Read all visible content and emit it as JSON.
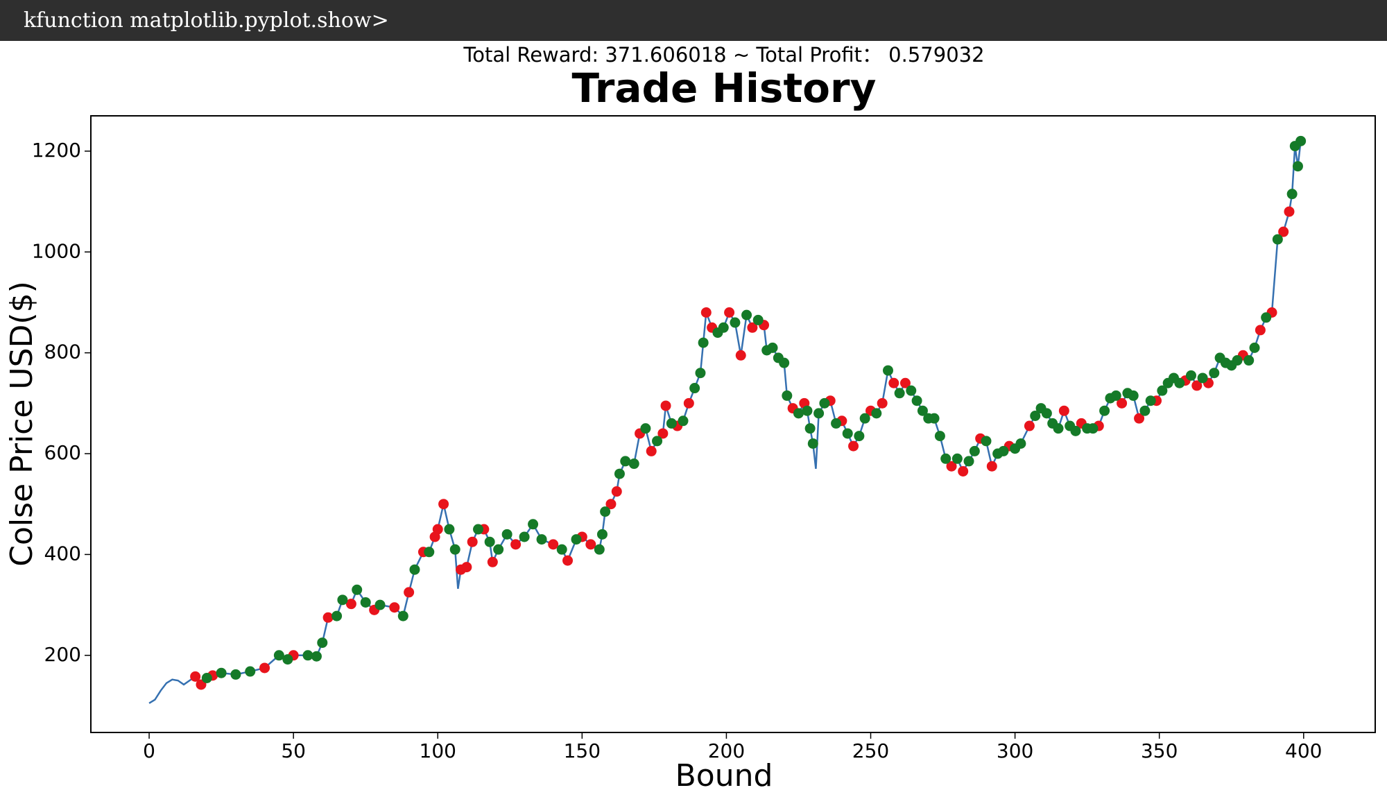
{
  "window": {
    "title": "kfunction matplotlib.pyplot.show>"
  },
  "chart_data": {
    "type": "line",
    "subtitle": "Total Reward: 371.606018 ~ Total Profit： 0.579032",
    "title": "Trade History",
    "x_label": "Bound",
    "y_label": "Colse Price USD($)",
    "xlim": [
      -20.2,
      424.8
    ],
    "ylim": [
      47,
      1270
    ],
    "xticks": [
      0,
      50,
      100,
      150,
      200,
      250,
      300,
      350,
      400
    ],
    "yticks": [
      200,
      400,
      600,
      800,
      1000,
      1200
    ],
    "grid": false,
    "series": [
      {
        "type": "line",
        "color": "#3570b0",
        "x": [
          0,
          2,
          4,
          6,
          8,
          10,
          12,
          14,
          16,
          18,
          20,
          22,
          25,
          30,
          35,
          40,
          45,
          48,
          50,
          55,
          58,
          60,
          62,
          65,
          67,
          70,
          72,
          75,
          78,
          80,
          85,
          88,
          90,
          92,
          95,
          97,
          99,
          100,
          102,
          104,
          106,
          107,
          108,
          110,
          112,
          114,
          116,
          118,
          119,
          121,
          124,
          127,
          130,
          133,
          136,
          140,
          143,
          145,
          148,
          150,
          153,
          156,
          157,
          158,
          160,
          162,
          163,
          165,
          168,
          170,
          172,
          174,
          176,
          178,
          179,
          181,
          183,
          185,
          187,
          189,
          191,
          192,
          193,
          195,
          197,
          199,
          201,
          203,
          205,
          207,
          209,
          211,
          213,
          214,
          216,
          218,
          220,
          221,
          223,
          225,
          227,
          228,
          229,
          230,
          231,
          232,
          234,
          236,
          238,
          240,
          242,
          244,
          246,
          248,
          250,
          252,
          254,
          256,
          258,
          260,
          262,
          264,
          266,
          268,
          270,
          272,
          274,
          276,
          278,
          280,
          282,
          284,
          286,
          288,
          290,
          292,
          294,
          296,
          298,
          300,
          302,
          305,
          307,
          309,
          311,
          313,
          315,
          317,
          319,
          321,
          323,
          325,
          327,
          329,
          331,
          333,
          335,
          337,
          339,
          341,
          343,
          345,
          347,
          349,
          351,
          353,
          355,
          357,
          359,
          361,
          363,
          365,
          367,
          369,
          371,
          373,
          375,
          377,
          379,
          381,
          383,
          385,
          387,
          389,
          391,
          393,
          395,
          396,
          397,
          398,
          399
        ],
        "values": [
          105,
          112,
          130,
          145,
          152,
          150,
          142,
          150,
          158,
          142,
          155,
          160,
          165,
          162,
          168,
          175,
          200,
          192,
          200,
          200,
          198,
          225,
          275,
          278,
          310,
          302,
          330,
          305,
          290,
          300,
          295,
          278,
          325,
          370,
          405,
          405,
          435,
          450,
          500,
          450,
          410,
          332,
          370,
          375,
          425,
          450,
          450,
          425,
          385,
          410,
          440,
          420,
          435,
          460,
          430,
          420,
          410,
          388,
          430,
          435,
          420,
          410,
          440,
          485,
          500,
          525,
          560,
          585,
          580,
          640,
          650,
          605,
          625,
          640,
          695,
          660,
          655,
          665,
          700,
          730,
          760,
          820,
          880,
          850,
          840,
          850,
          880,
          860,
          795,
          875,
          850,
          865,
          855,
          805,
          810,
          790,
          780,
          715,
          690,
          680,
          700,
          685,
          650,
          620,
          570,
          680,
          700,
          705,
          660,
          665,
          640,
          615,
          635,
          670,
          685,
          680,
          700,
          765,
          740,
          720,
          740,
          725,
          705,
          685,
          670,
          670,
          635,
          590,
          575,
          590,
          565,
          585,
          605,
          630,
          625,
          575,
          600,
          605,
          615,
          610,
          620,
          655,
          675,
          690,
          680,
          660,
          650,
          685,
          655,
          645,
          660,
          650,
          650,
          655,
          685,
          710,
          715,
          700,
          720,
          715,
          670,
          685,
          705,
          705,
          725,
          740,
          750,
          740,
          745,
          755,
          735,
          750,
          740,
          760,
          790,
          780,
          775,
          785,
          795,
          785,
          810,
          845,
          870,
          880,
          1025,
          1040,
          1080,
          1115,
          1210,
          1170,
          1220
        ]
      },
      {
        "type": "scatter",
        "color": "#e8141c",
        "x": [
          16,
          18,
          22,
          40,
          50,
          62,
          70,
          78,
          85,
          90,
          95,
          99,
          100,
          102,
          108,
          110,
          112,
          116,
          119,
          127,
          140,
          145,
          150,
          153,
          160,
          162,
          170,
          174,
          178,
          179,
          183,
          187,
          193,
          195,
          201,
          205,
          209,
          213,
          223,
          227,
          236,
          240,
          244,
          250,
          254,
          258,
          262,
          278,
          282,
          288,
          292,
          298,
          305,
          317,
          323,
          329,
          337,
          343,
          349,
          359,
          363,
          367,
          379,
          385,
          389,
          393,
          395
        ],
        "values": [
          158,
          142,
          160,
          175,
          200,
          275,
          302,
          290,
          295,
          325,
          405,
          435,
          450,
          500,
          370,
          375,
          425,
          450,
          385,
          420,
          420,
          388,
          435,
          420,
          500,
          525,
          640,
          605,
          640,
          695,
          655,
          700,
          880,
          850,
          880,
          795,
          850,
          855,
          690,
          700,
          705,
          665,
          615,
          685,
          700,
          740,
          740,
          575,
          565,
          630,
          575,
          615,
          655,
          685,
          660,
          655,
          700,
          670,
          705,
          745,
          735,
          740,
          795,
          845,
          880,
          1040,
          1080
        ]
      },
      {
        "type": "scatter",
        "color": "#157a28",
        "x": [
          20,
          25,
          30,
          35,
          45,
          48,
          55,
          58,
          60,
          65,
          67,
          72,
          75,
          80,
          88,
          92,
          97,
          104,
          106,
          114,
          118,
          121,
          124,
          130,
          133,
          136,
          143,
          148,
          156,
          157,
          158,
          163,
          165,
          168,
          172,
          176,
          181,
          185,
          189,
          191,
          192,
          197,
          199,
          203,
          207,
          211,
          214,
          216,
          218,
          220,
          221,
          225,
          228,
          229,
          230,
          232,
          234,
          238,
          242,
          246,
          248,
          252,
          256,
          260,
          264,
          266,
          268,
          270,
          272,
          274,
          276,
          280,
          284,
          286,
          290,
          294,
          296,
          300,
          302,
          307,
          309,
          311,
          313,
          315,
          319,
          321,
          325,
          327,
          331,
          333,
          335,
          339,
          341,
          345,
          347,
          351,
          353,
          355,
          357,
          361,
          365,
          369,
          371,
          373,
          375,
          377,
          381,
          383,
          387,
          391,
          396,
          397,
          398,
          399
        ],
        "values": [
          155,
          165,
          162,
          168,
          200,
          192,
          200,
          198,
          225,
          278,
          310,
          330,
          305,
          300,
          278,
          370,
          405,
          450,
          410,
          450,
          425,
          410,
          440,
          435,
          460,
          430,
          410,
          430,
          410,
          440,
          485,
          560,
          585,
          580,
          650,
          625,
          660,
          665,
          730,
          760,
          820,
          840,
          850,
          860,
          875,
          865,
          805,
          810,
          790,
          780,
          715,
          680,
          685,
          650,
          620,
          680,
          700,
          660,
          640,
          635,
          670,
          680,
          765,
          720,
          725,
          705,
          685,
          670,
          670,
          635,
          590,
          590,
          585,
          605,
          625,
          600,
          605,
          610,
          620,
          675,
          690,
          680,
          660,
          650,
          655,
          645,
          650,
          650,
          685,
          710,
          715,
          720,
          715,
          685,
          705,
          725,
          740,
          750,
          740,
          755,
          750,
          760,
          790,
          780,
          775,
          785,
          785,
          810,
          870,
          1025,
          1115,
          1210,
          1170,
          1220
        ]
      }
    ]
  }
}
